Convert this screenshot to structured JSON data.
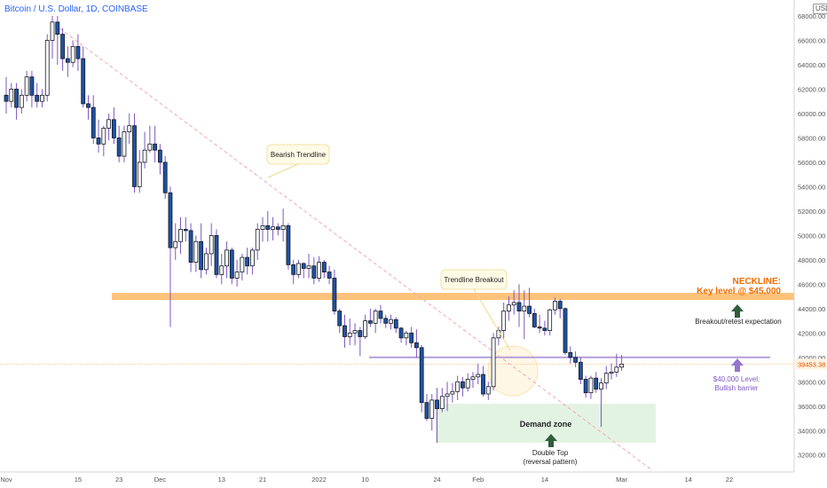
{
  "chart_data": {
    "type": "candlestick",
    "title": "Bitcoin / U.S. Dollar, 1D, COINBASE",
    "currency_badge": "USD",
    "last_price_label": "39453.38",
    "ylim": [
      31000,
      69000
    ],
    "y_ticks": [
      {
        "value": 32000,
        "label": "32000.00"
      },
      {
        "value": 34000,
        "label": "34000.00"
      },
      {
        "value": 36000,
        "label": "36000.00"
      },
      {
        "value": 38000,
        "label": "38000.00"
      },
      {
        "value": 40000,
        "label": "40000.00"
      },
      {
        "value": 42000,
        "label": "42000.00"
      },
      {
        "value": 44000,
        "label": "44000.00"
      },
      {
        "value": 46000,
        "label": "46000.00"
      },
      {
        "value": 48000,
        "label": "48000.00"
      },
      {
        "value": 50000,
        "label": "50000.00"
      },
      {
        "value": 52000,
        "label": "52000.00"
      },
      {
        "value": 54000,
        "label": "54000.00"
      },
      {
        "value": 56000,
        "label": "56000.00"
      },
      {
        "value": 58000,
        "label": "58000.00"
      },
      {
        "value": 60000,
        "label": "60000.00"
      },
      {
        "value": 62000,
        "label": "62000.00"
      },
      {
        "value": 64000,
        "label": "64000.00"
      },
      {
        "value": 66000,
        "label": "66000.00"
      },
      {
        "value": 68000,
        "label": "68000.00"
      }
    ],
    "x_ticks": [
      {
        "index": 0,
        "label": "Nov"
      },
      {
        "index": 14,
        "label": "15"
      },
      {
        "index": 22,
        "label": "23"
      },
      {
        "index": 30,
        "label": "Dec"
      },
      {
        "index": 42,
        "label": "13"
      },
      {
        "index": 50,
        "label": "21"
      },
      {
        "index": 61,
        "label": "2022"
      },
      {
        "index": 70,
        "label": "10"
      },
      {
        "index": 84,
        "label": "24"
      },
      {
        "index": 92,
        "label": "Feb"
      },
      {
        "index": 105,
        "label": "14"
      },
      {
        "index": 120,
        "label": "Mar"
      },
      {
        "index": 133,
        "label": "14"
      },
      {
        "index": 141,
        "label": "22"
      }
    ],
    "candles": [
      [
        61500,
        63000,
        60000,
        61000
      ],
      [
        61000,
        62500,
        60500,
        62000
      ],
      [
        62000,
        62500,
        59500,
        60500
      ],
      [
        60500,
        62000,
        60000,
        61500
      ],
      [
        61500,
        63500,
        61000,
        63000
      ],
      [
        63000,
        63500,
        60500,
        61500
      ],
      [
        61500,
        62500,
        60500,
        61000
      ],
      [
        61000,
        62000,
        60500,
        61500
      ],
      [
        61500,
        66500,
        61000,
        66000
      ],
      [
        66000,
        68000,
        64500,
        67500
      ],
      [
        67500,
        68000,
        64000,
        66500
      ],
      [
        66500,
        67000,
        63500,
        64500
      ],
      [
        64500,
        65500,
        63000,
        64200
      ],
      [
        64200,
        66000,
        63800,
        65500
      ],
      [
        65500,
        66500,
        63500,
        64500
      ],
      [
        64500,
        65500,
        60500,
        60800
      ],
      [
        60800,
        61500,
        59500,
        60500
      ],
      [
        60500,
        61500,
        57500,
        58000
      ],
      [
        58000,
        59500,
        56800,
        57500
      ],
      [
        57500,
        59000,
        56500,
        58800
      ],
      [
        58800,
        60000,
        57800,
        59500
      ],
      [
        59500,
        60500,
        57500,
        58000
      ],
      [
        58000,
        59000,
        56000,
        56500
      ],
      [
        56500,
        59000,
        56000,
        58500
      ],
      [
        58500,
        60000,
        57500,
        59000
      ],
      [
        59000,
        60000,
        53500,
        54000
      ],
      [
        54000,
        57000,
        53500,
        56000
      ],
      [
        56000,
        58500,
        55500,
        57000
      ],
      [
        57000,
        59000,
        56800,
        57500
      ],
      [
        57500,
        59000,
        56000,
        57000
      ],
      [
        57000,
        57500,
        55000,
        56000
      ],
      [
        56000,
        56500,
        53000,
        53500
      ],
      [
        53500,
        54000,
        42500,
        49000
      ],
      [
        49000,
        51000,
        48000,
        49500
      ],
      [
        49500,
        51500,
        48500,
        50500
      ],
      [
        50500,
        51500,
        49500,
        50400
      ],
      [
        50400,
        51000,
        47000,
        47800
      ],
      [
        47800,
        50000,
        47000,
        49500
      ],
      [
        49500,
        51000,
        46500,
        47200
      ],
      [
        47200,
        49000,
        46800,
        48500
      ],
      [
        48500,
        51000,
        47500,
        50000
      ],
      [
        50000,
        50500,
        46500,
        46800
      ],
      [
        46800,
        48500,
        46000,
        47500
      ],
      [
        47500,
        49500,
        46500,
        48800
      ],
      [
        48800,
        49000,
        46000,
        46500
      ],
      [
        46500,
        48000,
        45800,
        47000
      ],
      [
        47000,
        48500,
        46300,
        48200
      ],
      [
        48200,
        49000,
        46800,
        47500
      ],
      [
        47500,
        49000,
        46800,
        48800
      ],
      [
        48800,
        51000,
        48000,
        50500
      ],
      [
        50500,
        51500,
        49500,
        50800
      ],
      [
        50800,
        52000,
        49500,
        50500
      ],
      [
        50500,
        51500,
        49600,
        50700
      ],
      [
        50700,
        51000,
        50000,
        50500
      ],
      [
        50500,
        52200,
        49500,
        50800
      ],
      [
        50800,
        51000,
        47200,
        47600
      ],
      [
        47600,
        48000,
        46000,
        46800
      ],
      [
        46800,
        48000,
        46500,
        47700
      ],
      [
        47700,
        47800,
        46500,
        47300
      ],
      [
        47300,
        48500,
        46500,
        47500
      ],
      [
        47500,
        48200,
        46000,
        46500
      ],
      [
        46500,
        48300,
        46200,
        47800
      ],
      [
        47800,
        48000,
        46500,
        47000
      ],
      [
        47000,
        47500,
        46000,
        46500
      ],
      [
        46500,
        47200,
        43500,
        43800
      ],
      [
        43800,
        44000,
        42000,
        42600
      ],
      [
        42600,
        43500,
        40800,
        41700
      ],
      [
        41700,
        43200,
        41000,
        42000
      ],
      [
        42000,
        42800,
        41000,
        42200
      ],
      [
        42200,
        42500,
        40100,
        41700
      ],
      [
        41700,
        43500,
        41500,
        43000
      ],
      [
        43000,
        44000,
        42500,
        42800
      ],
      [
        42800,
        44000,
        42000,
        43800
      ],
      [
        43800,
        44300,
        42800,
        43200
      ],
      [
        43200,
        43500,
        42400,
        42800
      ],
      [
        42800,
        43500,
        42300,
        43100
      ],
      [
        43100,
        43300,
        42000,
        42400
      ],
      [
        42400,
        42500,
        41200,
        41600
      ],
      [
        41600,
        42200,
        41000,
        42000
      ],
      [
        42000,
        42500,
        40800,
        41200
      ],
      [
        41200,
        42300,
        40000,
        40800
      ],
      [
        40800,
        41000,
        35500,
        36300
      ],
      [
        36300,
        37000,
        34800,
        35000
      ],
      [
        35000,
        37000,
        34000,
        36500
      ],
      [
        36500,
        37500,
        33000,
        35800
      ],
      [
        35800,
        37500,
        35500,
        36800
      ],
      [
        36800,
        38000,
        35600,
        37000
      ],
      [
        37000,
        37900,
        36300,
        37200
      ],
      [
        37200,
        38500,
        36500,
        38000
      ],
      [
        38000,
        38400,
        36800,
        37500
      ],
      [
        37500,
        38700,
        37200,
        38200
      ],
      [
        38200,
        38800,
        37500,
        38400
      ],
      [
        38400,
        39500,
        37800,
        38600
      ],
      [
        38600,
        39300,
        36800,
        37000
      ],
      [
        37000,
        38000,
        36500,
        37600
      ],
      [
        37600,
        42000,
        37300,
        41600
      ],
      [
        41600,
        42500,
        41000,
        42200
      ],
      [
        42200,
        44500,
        41500,
        43800
      ],
      [
        43800,
        45000,
        43000,
        44300
      ],
      [
        44300,
        45500,
        43500,
        44500
      ],
      [
        44500,
        46000,
        42500,
        43800
      ],
      [
        43800,
        45500,
        41500,
        44200
      ],
      [
        44200,
        45700,
        43300,
        43600
      ],
      [
        43600,
        44000,
        42400,
        42500
      ],
      [
        42500,
        43500,
        42000,
        42400
      ],
      [
        42400,
        43000,
        41800,
        42200
      ],
      [
        42200,
        44000,
        41800,
        43900
      ],
      [
        43900,
        44900,
        43500,
        44600
      ],
      [
        44600,
        44800,
        43200,
        44000
      ],
      [
        44000,
        44100,
        40200,
        40400
      ],
      [
        40400,
        40900,
        39500,
        40000
      ],
      [
        40000,
        40500,
        39200,
        39600
      ],
      [
        39600,
        40000,
        37800,
        38200
      ],
      [
        38200,
        38500,
        36700,
        37100
      ],
      [
        37100,
        38500,
        36600,
        38300
      ],
      [
        38300,
        38800,
        37100,
        37400
      ],
      [
        37400,
        38300,
        34300,
        37900
      ],
      [
        37900,
        39300,
        37400,
        38700
      ],
      [
        38700,
        39500,
        38200,
        38800
      ],
      [
        38800,
        40300,
        38400,
        39200
      ],
      [
        39200,
        40200,
        38900,
        39453
      ]
    ],
    "horizontal_levels": [
      {
        "name": "neckline",
        "value": 45000
      },
      {
        "name": "bullish-barrier",
        "value": 40000
      },
      {
        "name": "current-price",
        "value": 39453
      }
    ],
    "demand_zone": {
      "from": 33000,
      "to": 36200
    },
    "annotations": {
      "bearish_trendline": "Bearish Trendline",
      "trendline_breakout": "Trendline Breakout",
      "neckline_title": "NECKLINE:",
      "neckline_sub": "Key level @ $45,000",
      "breakout_retest": "Breakout/retest expectation",
      "level_40k_line1": "$40,000 Level:",
      "level_40k_line2": "Bullish barrier",
      "demand_zone": "Demand zone",
      "double_top_line1": "Double Top",
      "double_top_line2": "(reversal pattern)"
    },
    "colors": {
      "up_body": "#ffffff",
      "down_body": "#1e53a5",
      "candle_outline": "#131722",
      "wick": "#7e57c2",
      "neckline": "#ffc27a",
      "barrier": "#b39ddb",
      "demand_zone": "#e3f3e3",
      "trendline": "#f4a6b4",
      "arrow_green": "#2e5e3b",
      "arrow_purple": "#9575cd",
      "neckline_text": "#ef6c00",
      "purple_text": "#7e57c2"
    }
  }
}
